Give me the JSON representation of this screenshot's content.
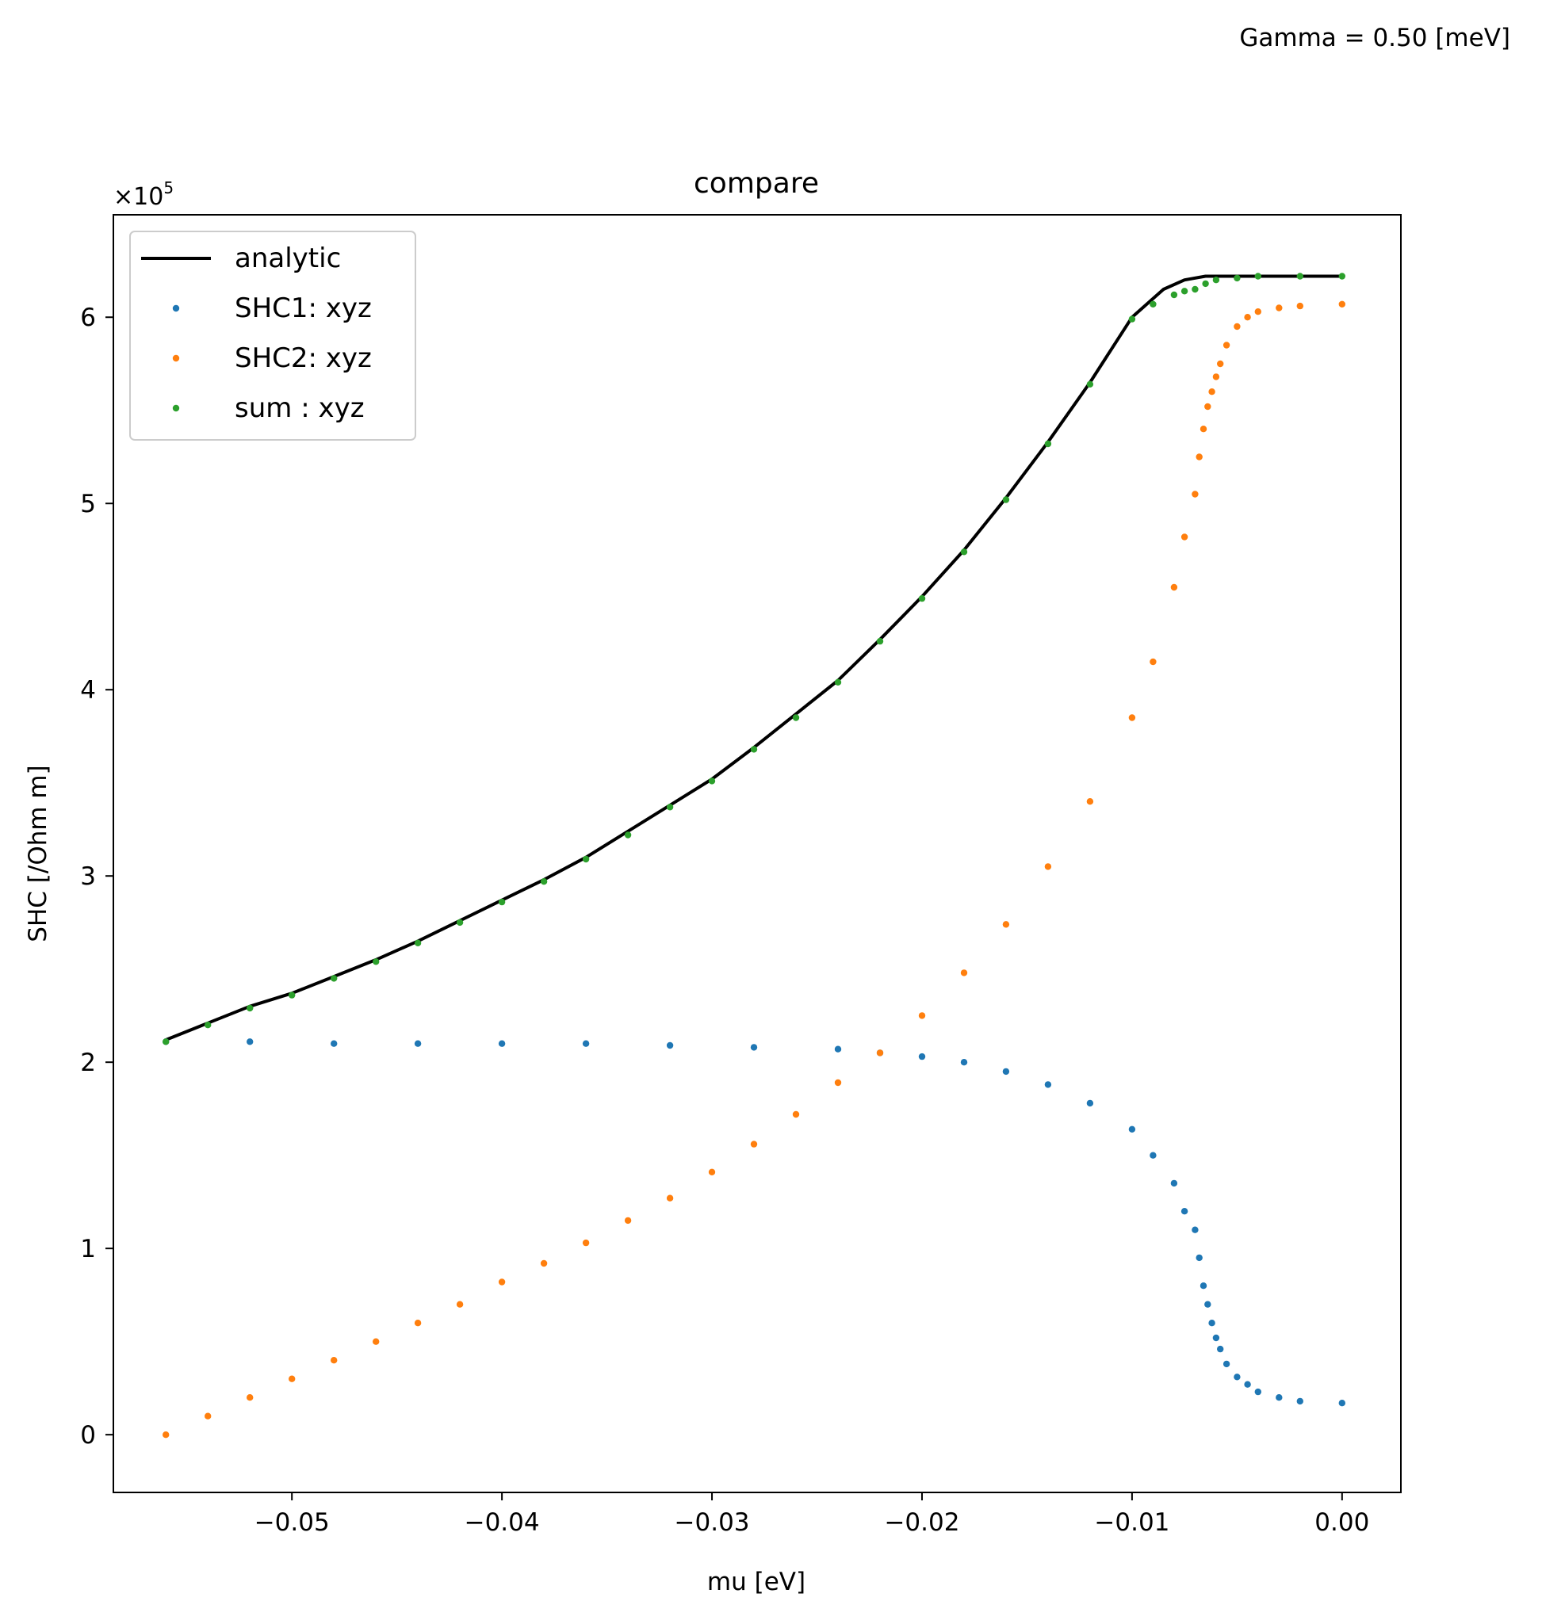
{
  "suptitle": "Gamma = 0.50 [meV]",
  "chart_data": {
    "type": "scatter",
    "title": "compare",
    "xlabel": "mu [eV]",
    "ylabel": "SHC [/Ohm m]",
    "y_offset_label": "×10",
    "y_offset_exponent": "5",
    "xlim": [
      -0.0585,
      0.0028
    ],
    "ylim": [
      -0.31,
      6.55
    ],
    "y_scale_factor": 100000,
    "xticks": [
      -0.05,
      -0.04,
      -0.03,
      -0.02,
      -0.01,
      0.0
    ],
    "xtick_labels": [
      "−0.05",
      "−0.04",
      "−0.03",
      "−0.02",
      "−0.01",
      "0.00"
    ],
    "yticks": [
      0,
      1,
      2,
      3,
      4,
      5,
      6
    ],
    "ytick_labels": [
      "0",
      "1",
      "2",
      "3",
      "4",
      "5",
      "6"
    ],
    "grid": false,
    "legend_position": "top-left",
    "series": [
      {
        "name": "analytic",
        "kind": "line",
        "color": "#000000",
        "points": [
          [
            -0.056,
            2.12
          ],
          [
            -0.054,
            2.21
          ],
          [
            -0.052,
            2.3
          ],
          [
            -0.05,
            2.37
          ],
          [
            -0.048,
            2.46
          ],
          [
            -0.046,
            2.55
          ],
          [
            -0.044,
            2.65
          ],
          [
            -0.042,
            2.76
          ],
          [
            -0.04,
            2.87
          ],
          [
            -0.038,
            2.98
          ],
          [
            -0.036,
            3.1
          ],
          [
            -0.034,
            3.24
          ],
          [
            -0.032,
            3.38
          ],
          [
            -0.03,
            3.52
          ],
          [
            -0.028,
            3.69
          ],
          [
            -0.026,
            3.87
          ],
          [
            -0.024,
            4.05
          ],
          [
            -0.022,
            4.27
          ],
          [
            -0.02,
            4.5
          ],
          [
            -0.018,
            4.75
          ],
          [
            -0.016,
            5.03
          ],
          [
            -0.014,
            5.33
          ],
          [
            -0.012,
            5.65
          ],
          [
            -0.01,
            6.0
          ],
          [
            -0.0085,
            6.15
          ],
          [
            -0.0075,
            6.2
          ],
          [
            -0.0065,
            6.22
          ],
          [
            -0.006,
            6.22
          ],
          [
            -0.004,
            6.22
          ],
          [
            -0.002,
            6.22
          ],
          [
            0.0,
            6.22
          ]
        ]
      },
      {
        "name": "SHC1: xyz",
        "kind": "scatter",
        "color": "#1f77b4",
        "points": [
          [
            -0.056,
            2.11
          ],
          [
            -0.052,
            2.11
          ],
          [
            -0.048,
            2.1
          ],
          [
            -0.044,
            2.1
          ],
          [
            -0.04,
            2.1
          ],
          [
            -0.036,
            2.1
          ],
          [
            -0.032,
            2.09
          ],
          [
            -0.028,
            2.08
          ],
          [
            -0.024,
            2.07
          ],
          [
            -0.022,
            2.05
          ],
          [
            -0.02,
            2.03
          ],
          [
            -0.018,
            2.0
          ],
          [
            -0.016,
            1.95
          ],
          [
            -0.014,
            1.88
          ],
          [
            -0.012,
            1.78
          ],
          [
            -0.01,
            1.64
          ],
          [
            -0.009,
            1.5
          ],
          [
            -0.008,
            1.35
          ],
          [
            -0.0075,
            1.2
          ],
          [
            -0.007,
            1.1
          ],
          [
            -0.0068,
            0.95
          ],
          [
            -0.0066,
            0.8
          ],
          [
            -0.0064,
            0.7
          ],
          [
            -0.0062,
            0.6
          ],
          [
            -0.006,
            0.52
          ],
          [
            -0.0058,
            0.46
          ],
          [
            -0.0055,
            0.38
          ],
          [
            -0.005,
            0.31
          ],
          [
            -0.0045,
            0.27
          ],
          [
            -0.004,
            0.23
          ],
          [
            -0.003,
            0.2
          ],
          [
            -0.002,
            0.18
          ],
          [
            0.0,
            0.17
          ]
        ]
      },
      {
        "name": "SHC2: xyz",
        "kind": "scatter",
        "color": "#ff7f0e",
        "points": [
          [
            -0.056,
            0.0
          ],
          [
            -0.054,
            0.1
          ],
          [
            -0.052,
            0.2
          ],
          [
            -0.05,
            0.3
          ],
          [
            -0.048,
            0.4
          ],
          [
            -0.046,
            0.5
          ],
          [
            -0.044,
            0.6
          ],
          [
            -0.042,
            0.7
          ],
          [
            -0.04,
            0.82
          ],
          [
            -0.038,
            0.92
          ],
          [
            -0.036,
            1.03
          ],
          [
            -0.034,
            1.15
          ],
          [
            -0.032,
            1.27
          ],
          [
            -0.03,
            1.41
          ],
          [
            -0.028,
            1.56
          ],
          [
            -0.026,
            1.72
          ],
          [
            -0.024,
            1.89
          ],
          [
            -0.022,
            2.05
          ],
          [
            -0.02,
            2.25
          ],
          [
            -0.018,
            2.48
          ],
          [
            -0.016,
            2.74
          ],
          [
            -0.014,
            3.05
          ],
          [
            -0.012,
            3.4
          ],
          [
            -0.01,
            3.85
          ],
          [
            -0.009,
            4.15
          ],
          [
            -0.008,
            4.55
          ],
          [
            -0.0075,
            4.82
          ],
          [
            -0.007,
            5.05
          ],
          [
            -0.0068,
            5.25
          ],
          [
            -0.0066,
            5.4
          ],
          [
            -0.0064,
            5.52
          ],
          [
            -0.0062,
            5.6
          ],
          [
            -0.006,
            5.68
          ],
          [
            -0.0058,
            5.75
          ],
          [
            -0.0055,
            5.85
          ],
          [
            -0.005,
            5.95
          ],
          [
            -0.0045,
            6.0
          ],
          [
            -0.004,
            6.03
          ],
          [
            -0.003,
            6.05
          ],
          [
            -0.002,
            6.06
          ],
          [
            0.0,
            6.07
          ]
        ]
      },
      {
        "name": "sum : xyz",
        "kind": "scatter",
        "color": "#2ca02c",
        "points": [
          [
            -0.056,
            2.11
          ],
          [
            -0.054,
            2.2
          ],
          [
            -0.052,
            2.29
          ],
          [
            -0.05,
            2.36
          ],
          [
            -0.048,
            2.45
          ],
          [
            -0.046,
            2.54
          ],
          [
            -0.044,
            2.64
          ],
          [
            -0.042,
            2.75
          ],
          [
            -0.04,
            2.86
          ],
          [
            -0.038,
            2.97
          ],
          [
            -0.036,
            3.09
          ],
          [
            -0.034,
            3.22
          ],
          [
            -0.032,
            3.37
          ],
          [
            -0.03,
            3.51
          ],
          [
            -0.028,
            3.68
          ],
          [
            -0.026,
            3.85
          ],
          [
            -0.024,
            4.04
          ],
          [
            -0.022,
            4.26
          ],
          [
            -0.02,
            4.49
          ],
          [
            -0.018,
            4.74
          ],
          [
            -0.016,
            5.02
          ],
          [
            -0.014,
            5.32
          ],
          [
            -0.012,
            5.64
          ],
          [
            -0.01,
            5.99
          ],
          [
            -0.009,
            6.07
          ],
          [
            -0.008,
            6.12
          ],
          [
            -0.0075,
            6.14
          ],
          [
            -0.007,
            6.15
          ],
          [
            -0.0065,
            6.18
          ],
          [
            -0.006,
            6.2
          ],
          [
            -0.005,
            6.21
          ],
          [
            -0.004,
            6.22
          ],
          [
            -0.002,
            6.22
          ],
          [
            0.0,
            6.22
          ]
        ]
      }
    ]
  }
}
